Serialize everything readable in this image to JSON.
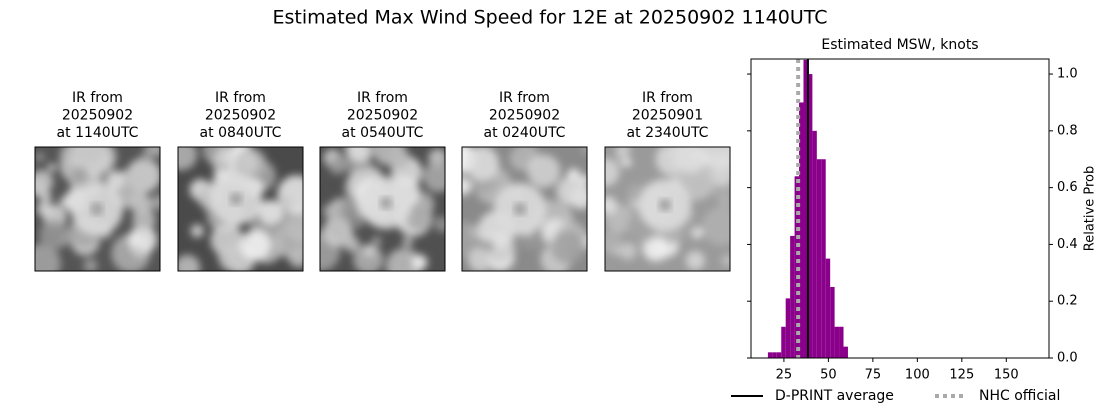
{
  "title": "Estimated Max Wind Speed for 12E at 20250902 1140UTC",
  "panels": [
    {
      "lines": [
        "IR from",
        "20250902",
        "at 1140UTC"
      ]
    },
    {
      "lines": [
        "IR from",
        "20250902",
        "at 0840UTC"
      ]
    },
    {
      "lines": [
        "IR from",
        "20250902",
        "at 0540UTC"
      ]
    },
    {
      "lines": [
        "IR from",
        "20250902",
        "at 0240UTC"
      ]
    },
    {
      "lines": [
        "IR from",
        "20250901",
        "at 2340UTC"
      ]
    }
  ],
  "chart_data": {
    "type": "histogram",
    "title": "Estimated MSW, knots",
    "ylabel": "Relative Prob",
    "bins": [
      16,
      18.5,
      21,
      23.5,
      26,
      28.5,
      31,
      33.5,
      36,
      38.5,
      41,
      43.5,
      46,
      48.5,
      51,
      53.5,
      56,
      58.5,
      61
    ],
    "values": [
      0.02,
      0.02,
      0.02,
      0.11,
      0.21,
      0.43,
      0.64,
      0.9,
      1.05,
      1.0,
      0.8,
      0.7,
      0.7,
      0.35,
      0.25,
      0.11,
      0.11,
      0.04
    ],
    "color": "#8b008b",
    "xlim": [
      6.5,
      174
    ],
    "xticks": [
      25,
      50,
      75,
      100,
      125,
      150
    ],
    "ylim": [
      0,
      1.053
    ],
    "yticks": [
      {
        "value": 0,
        "label": "0.0"
      },
      0.2,
      0.4,
      0.6,
      0.8,
      {
        "value": 1,
        "label": "1.0"
      }
    ],
    "lines": [
      {
        "name": "D-PRINT average",
        "value": 38.5,
        "color": "#000000",
        "style": "solid"
      },
      {
        "name": "NHC official",
        "value": 33,
        "color": "#aaaaaa",
        "style": "dotted"
      }
    ]
  }
}
